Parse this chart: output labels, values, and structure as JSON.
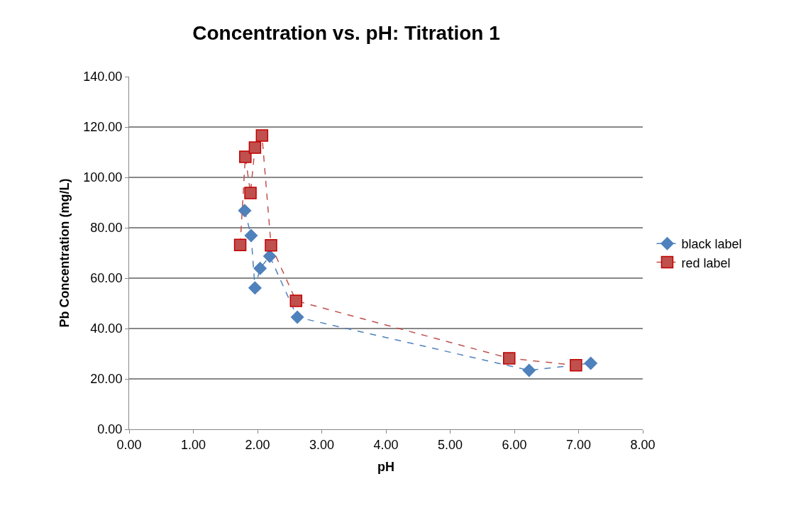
{
  "chart_data": {
    "type": "line",
    "title": "Concentration vs. pH: Titration 1",
    "xlabel": "pH",
    "ylabel": "Pb Concentration (mg/L)",
    "xlim": [
      0,
      8
    ],
    "xticks": [
      {
        "value": 0,
        "label": "0.00"
      },
      {
        "value": 1,
        "label": "1.00"
      },
      {
        "value": 2,
        "label": "2.00"
      },
      {
        "value": 3,
        "label": "3.00"
      },
      {
        "value": 4,
        "label": "4.00"
      },
      {
        "value": 5,
        "label": "5.00"
      },
      {
        "value": 6,
        "label": "6.00"
      },
      {
        "value": 7,
        "label": "7.00"
      },
      {
        "value": 8,
        "label": "8.00"
      }
    ],
    "ylim": [
      0,
      140
    ],
    "yticks": [
      {
        "value": 0,
        "label": "0.00"
      },
      {
        "value": 20,
        "label": "20.00"
      },
      {
        "value": 40,
        "label": "40.00"
      },
      {
        "value": 60,
        "label": "60.00"
      },
      {
        "value": 80,
        "label": "80.00"
      },
      {
        "value": 100,
        "label": "100.00"
      },
      {
        "value": 120,
        "label": "120.00"
      },
      {
        "value": 140,
        "label": "140.00"
      }
    ],
    "grid": "y",
    "legend": "right",
    "line_style": "dashed",
    "series": [
      {
        "name": "black label",
        "color": "#4f81bd",
        "marker": "diamond",
        "x": [
          1.8,
          1.9,
          1.96,
          2.04,
          2.19,
          2.62,
          6.23,
          7.19
        ],
        "values": [
          86.8,
          76.9,
          56.1,
          63.9,
          68.7,
          44.5,
          23.4,
          26.2
        ]
      },
      {
        "name": "red label",
        "color": "#c0504d",
        "marker": "square",
        "x": [
          1.73,
          1.81,
          1.89,
          1.96,
          2.07,
          2.21,
          2.6,
          5.92,
          6.96
        ],
        "values": [
          73.2,
          108.2,
          93.8,
          111.8,
          116.6,
          73.0,
          51.0,
          28.2,
          25.4
        ]
      }
    ]
  }
}
